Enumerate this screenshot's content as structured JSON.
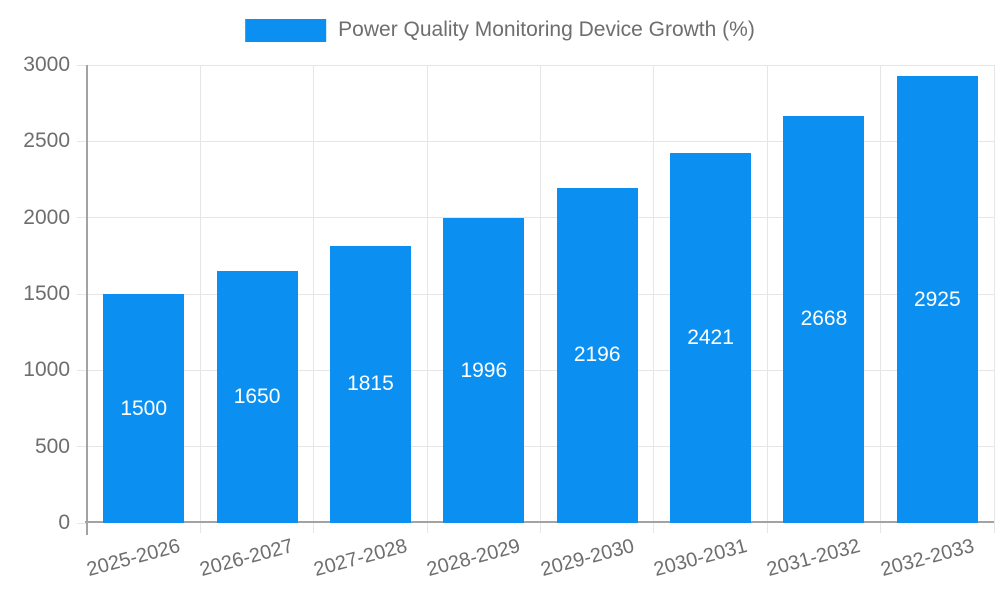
{
  "legend": {
    "label": "Power Quality Monitoring Device Growth (%)"
  },
  "chart_data": {
    "type": "bar",
    "title": "Power Quality Monitoring Device Growth (%)",
    "series_name": "Power Quality Monitoring Device Growth (%)",
    "categories": [
      "2025-2026",
      "2026-2027",
      "2027-2028",
      "2028-2029",
      "2029-2030",
      "2030-2031",
      "2031-2032",
      "2032-2033"
    ],
    "values": [
      1500,
      1650,
      1815,
      1996,
      2196,
      2421,
      2668,
      2925
    ],
    "value_labels": [
      "1500",
      "1650",
      "1815",
      "1996",
      "2196",
      "2421",
      "2668",
      "2925"
    ],
    "xlabel": "",
    "ylabel": "",
    "ylim": [
      0,
      3000
    ],
    "yticks": [
      0,
      500,
      1000,
      1500,
      2000,
      2500,
      3000
    ],
    "grid": true,
    "legend_position": "top-center",
    "x_label_rotation_deg": -15,
    "colors": {
      "bar": "#0b90f2",
      "value_label": "#ffffff",
      "axis_text": "#6e6e6e",
      "grid_line": "#e6e6e6",
      "axis_line": "#a3a3a3"
    }
  }
}
